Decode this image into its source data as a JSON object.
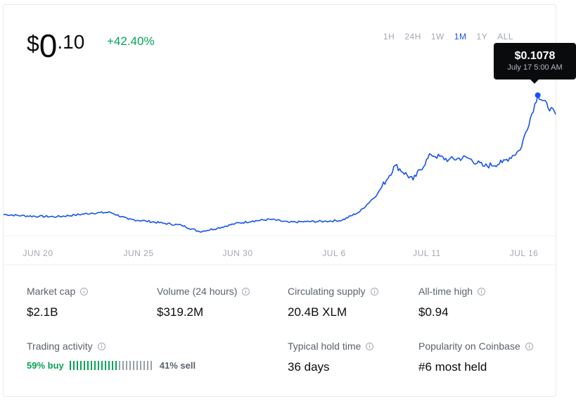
{
  "price": {
    "currency": "$",
    "integer": "0",
    "decimal": ".10"
  },
  "change": "+42.40%",
  "ranges": [
    "1H",
    "24H",
    "1W",
    "1M",
    "1Y",
    "ALL"
  ],
  "active_range": "1M",
  "tooltip": {
    "value": "$0.1078",
    "time": "July 17 5:00 AM"
  },
  "colors": {
    "line": "#1652f0",
    "up": "#05a357",
    "muted": "#a2a8b3"
  },
  "x_ticks": [
    "JUN 20",
    "JUN 25",
    "JUN 30",
    "JUL 6",
    "JUL 11",
    "JUL 16"
  ],
  "stats": [
    {
      "label": "Market cap",
      "value": "$2.1B"
    },
    {
      "label": "Volume (24 hours)",
      "value": "$319.2M"
    },
    {
      "label": "Circulating supply",
      "value": "20.4B XLM"
    },
    {
      "label": "All-time high",
      "value": "$0.94"
    },
    {
      "label": "Typical hold time",
      "value": "36 days"
    },
    {
      "label": "Popularity on Coinbase",
      "value": "#6 most held"
    }
  ],
  "trading": {
    "label": "Trading activity",
    "buy": "59% buy",
    "sell": "41% sell",
    "buy_fraction": 0.59
  },
  "chart_data": {
    "type": "line",
    "x": [
      "Jun 17",
      "Jun 18",
      "Jun 19",
      "Jun 20",
      "Jun 21",
      "Jun 22",
      "Jun 23",
      "Jun 24",
      "Jun 25",
      "Jun 26",
      "Jun 27",
      "Jun 28",
      "Jun 29",
      "Jun 30",
      "Jul 1",
      "Jul 2",
      "Jul 3",
      "Jul 4",
      "Jul 5",
      "Jul 6",
      "Jul 7",
      "Jul 8",
      "Jul 9",
      "Jul 10",
      "Jul 11",
      "Jul 12",
      "Jul 13",
      "Jul 14",
      "Jul 15",
      "Jul 16",
      "Jul 17",
      "Jul 17b"
    ],
    "y": [
      0.0718,
      0.0714,
      0.0712,
      0.0711,
      0.0716,
      0.0722,
      0.0724,
      0.0703,
      0.0698,
      0.0691,
      0.0685,
      0.0666,
      0.0676,
      0.069,
      0.0698,
      0.0703,
      0.0694,
      0.0696,
      0.0697,
      0.07,
      0.0726,
      0.078,
      0.0866,
      0.0822,
      0.0899,
      0.0883,
      0.089,
      0.0863,
      0.0874,
      0.0912,
      0.1078,
      0.102
    ],
    "peak": {
      "x": "Jul 17",
      "y": 0.1078
    }
  }
}
